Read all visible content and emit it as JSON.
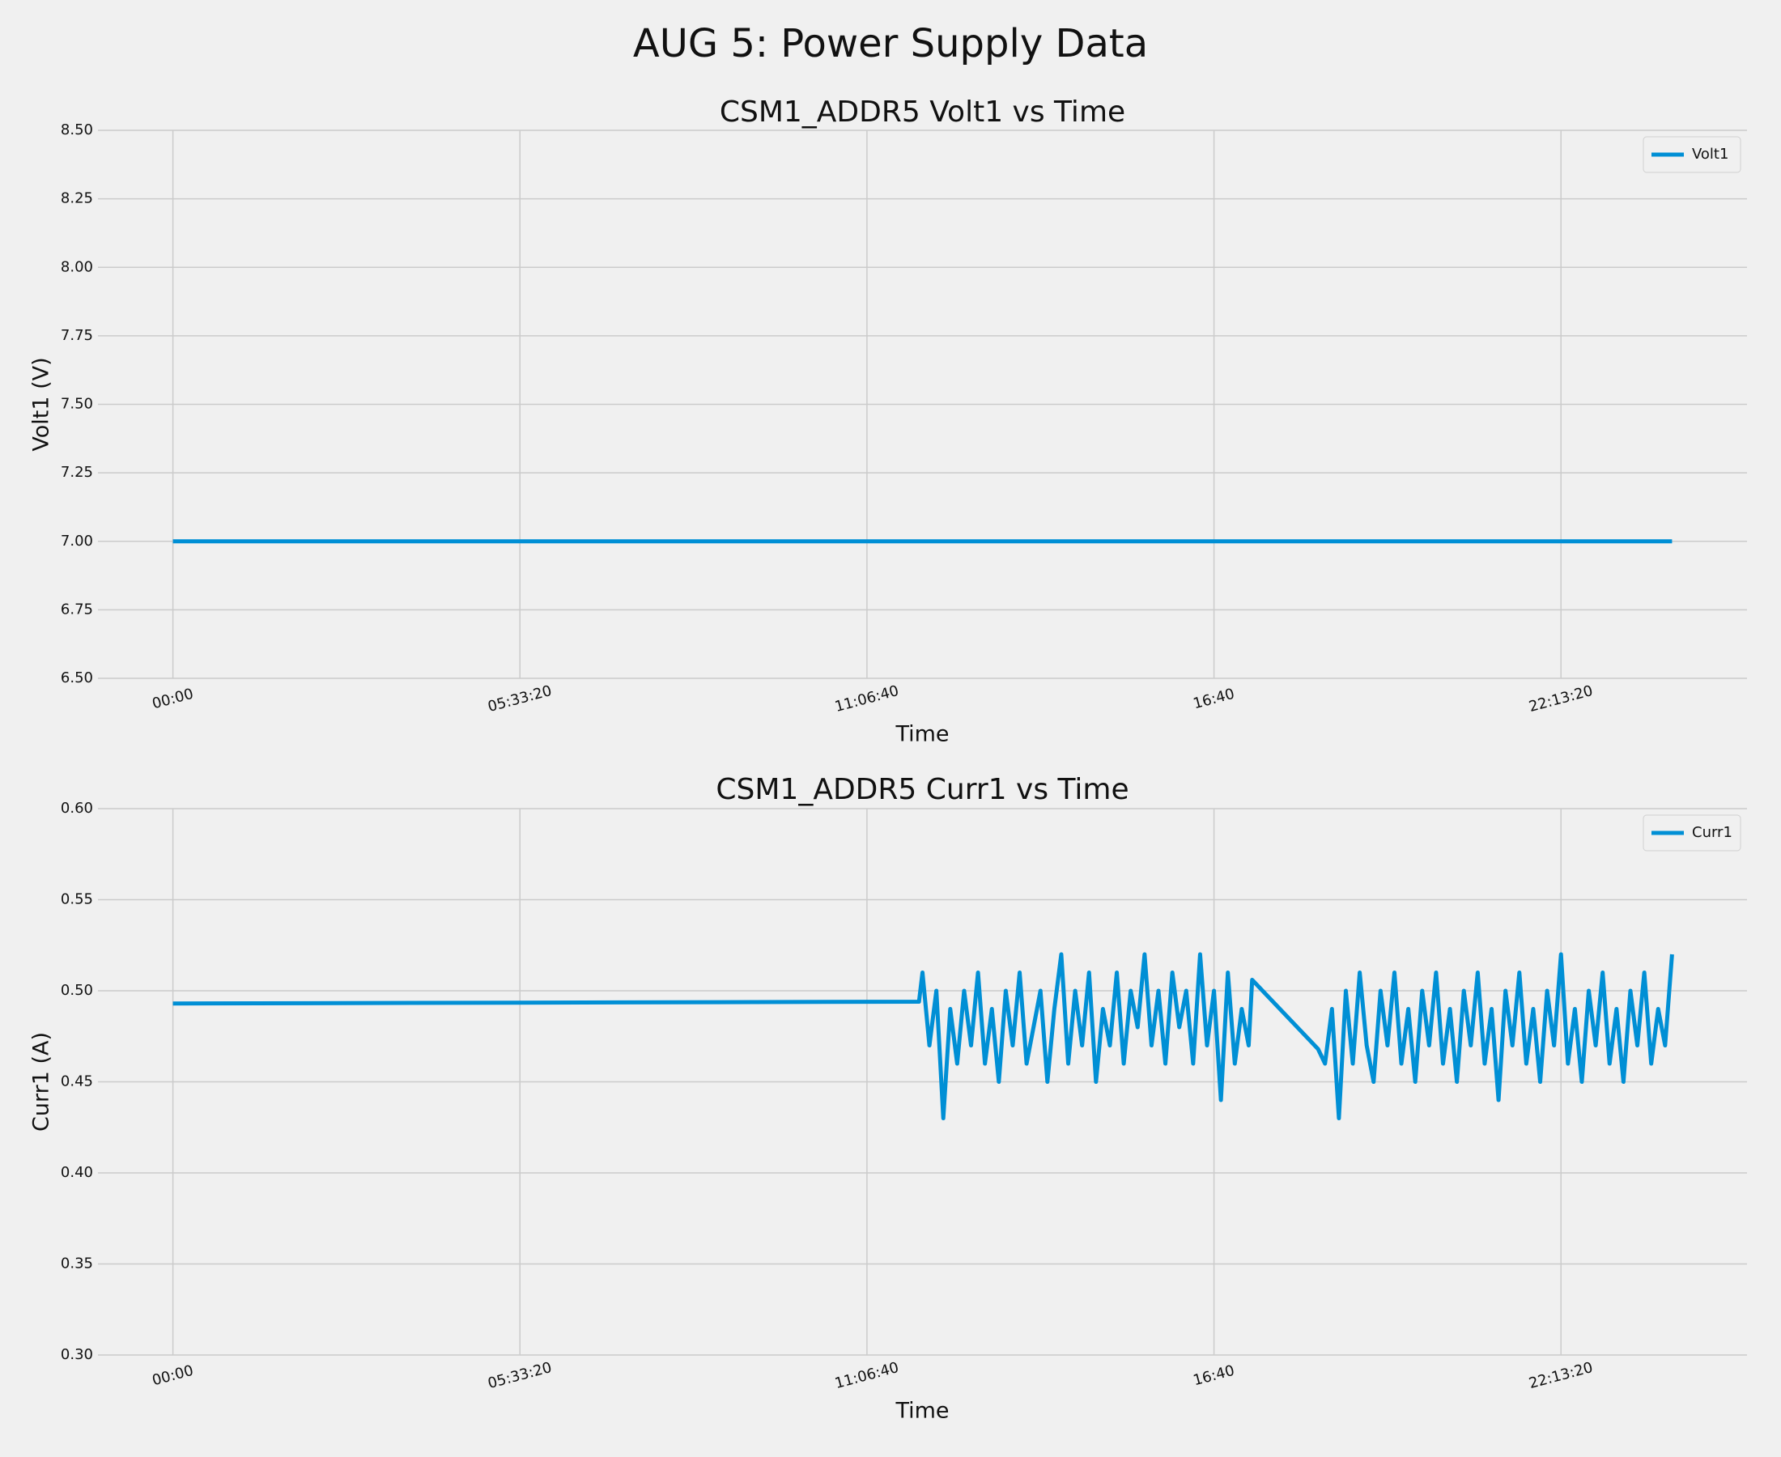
{
  "title": "AUG 5: Power Supply Data",
  "chart_data": [
    {
      "type": "line",
      "title": "CSM1_ADDR5 Volt1 vs Time",
      "x_label": "Time",
      "y_label": "Volt1 (V)",
      "x": [
        0,
        86400
      ],
      "series": [
        {
          "name": "Volt1",
          "color": "#008fd5",
          "values": [
            7.0,
            7.0
          ]
        }
      ],
      "xlim": [
        -4320,
        90720
      ],
      "ylim": [
        6.5,
        8.5
      ],
      "xticks": [
        {
          "value": 0,
          "label": "00:00"
        },
        {
          "value": 20000,
          "label": "05:33:20"
        },
        {
          "value": 40000,
          "label": "11:06:40"
        },
        {
          "value": 60000,
          "label": "16:40"
        },
        {
          "value": 80000,
          "label": "22:13:20"
        }
      ],
      "yticks": [
        {
          "value": 6.5,
          "label": "6.50"
        },
        6.75,
        {
          "value": 7.0,
          "label": "7.00"
        },
        7.25,
        {
          "value": 7.5,
          "label": "7.50"
        },
        7.75,
        {
          "value": 8.0,
          "label": "8.00"
        },
        8.25,
        {
          "value": 8.5,
          "label": "8.50"
        }
      ],
      "grid": true,
      "legend": "upper right"
    },
    {
      "type": "line",
      "title": "CSM1_ADDR5 Curr1 vs Time",
      "x_label": "Time",
      "y_label": "Curr1 (A)",
      "x": [
        0,
        43000,
        43200,
        43600,
        44000,
        44400,
        44800,
        45200,
        45600,
        46000,
        46400,
        46800,
        47200,
        47600,
        48000,
        48400,
        48800,
        49200,
        49600,
        50000,
        50400,
        50800,
        51200,
        51600,
        52000,
        52400,
        52800,
        53200,
        53600,
        54000,
        54400,
        54800,
        55200,
        55600,
        56000,
        56400,
        56800,
        57200,
        57600,
        58000,
        58400,
        58800,
        59200,
        59600,
        60000,
        60400,
        60800,
        61200,
        61600,
        62000,
        62200,
        66000,
        66400,
        66800,
        67200,
        67600,
        68000,
        68400,
        68800,
        69200,
        69600,
        70000,
        70400,
        70800,
        71200,
        71600,
        72000,
        72400,
        72800,
        73200,
        73600,
        74000,
        74400,
        74800,
        75200,
        75600,
        76000,
        76400,
        76800,
        77200,
        77600,
        78000,
        78400,
        78800,
        79200,
        79600,
        80000,
        80400,
        80800,
        81200,
        81600,
        82000,
        82400,
        82800,
        83200,
        83600,
        84000,
        84400,
        84800,
        85200,
        85600,
        86000,
        86400
      ],
      "series": [
        {
          "name": "Curr1",
          "color": "#008fd5",
          "values": [
            0.493,
            0.494,
            0.51,
            0.47,
            0.5,
            0.43,
            0.49,
            0.46,
            0.5,
            0.47,
            0.51,
            0.46,
            0.49,
            0.45,
            0.5,
            0.47,
            0.51,
            0.46,
            0.48,
            0.5,
            0.45,
            0.49,
            0.52,
            0.46,
            0.5,
            0.47,
            0.51,
            0.45,
            0.49,
            0.47,
            0.51,
            0.46,
            0.5,
            0.48,
            0.52,
            0.47,
            0.5,
            0.46,
            0.51,
            0.48,
            0.5,
            0.46,
            0.52,
            0.47,
            0.5,
            0.44,
            0.51,
            0.46,
            0.49,
            0.47,
            0.506,
            0.468,
            0.46,
            0.49,
            0.43,
            0.5,
            0.46,
            0.51,
            0.47,
            0.45,
            0.5,
            0.47,
            0.51,
            0.46,
            0.49,
            0.45,
            0.5,
            0.47,
            0.51,
            0.46,
            0.49,
            0.45,
            0.5,
            0.47,
            0.51,
            0.46,
            0.49,
            0.44,
            0.5,
            0.47,
            0.51,
            0.46,
            0.49,
            0.45,
            0.5,
            0.47,
            0.52,
            0.46,
            0.49,
            0.45,
            0.5,
            0.47,
            0.51,
            0.46,
            0.49,
            0.45,
            0.5,
            0.47,
            0.51,
            0.46,
            0.49,
            0.47,
            0.52
          ]
        }
      ],
      "xlim": [
        -4320,
        90720
      ],
      "ylim": [
        0.3,
        0.6
      ],
      "xticks": [
        {
          "value": 0,
          "label": "00:00"
        },
        {
          "value": 20000,
          "label": "05:33:20"
        },
        {
          "value": 40000,
          "label": "11:06:40"
        },
        {
          "value": 60000,
          "label": "16:40"
        },
        {
          "value": 80000,
          "label": "22:13:20"
        }
      ],
      "yticks": [
        {
          "value": 0.3,
          "label": "0.30"
        },
        0.35,
        {
          "value": 0.4,
          "label": "0.40"
        },
        0.45,
        {
          "value": 0.5,
          "label": "0.50"
        },
        0.55,
        {
          "value": 0.6,
          "label": "0.60"
        }
      ],
      "grid": true,
      "legend": "upper right"
    }
  ]
}
